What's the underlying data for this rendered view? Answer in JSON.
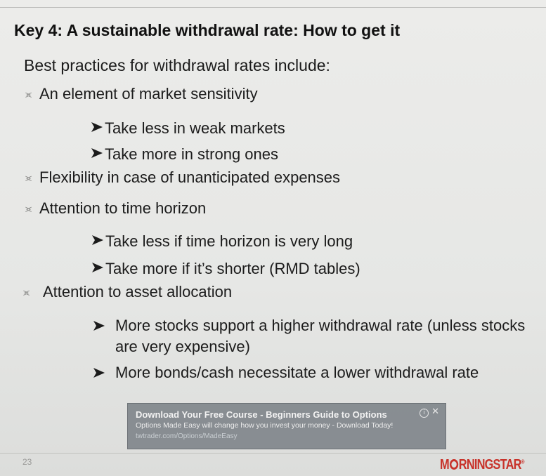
{
  "slide": {
    "title": "Key 4: A sustainable withdrawal rate: How to get it",
    "intro": "Best practices for withdrawal rates include:",
    "bullets": [
      {
        "text": "An element of market sensitivity",
        "sub": [
          "Take less in weak markets",
          "Take more in strong ones"
        ]
      },
      {
        "text": "Flexibility in case of unanticipated expenses",
        "sub": []
      },
      {
        "text": "Attention to time horizon",
        "sub": [
          "Take less if time horizon is very long",
          "Take more if it’s shorter (RMD tables)"
        ]
      },
      {
        "text": "Attention to asset allocation",
        "sub": [
          "More stocks support a higher withdrawal rate (unless stocks are very expensive)",
          "More bonds/cash necessitate a lower withdrawal rate"
        ]
      }
    ],
    "page_number": "23",
    "logo_text": "MORNINGSTAR"
  },
  "ad": {
    "title": "Download Your Free Course - Beginners Guide to Options",
    "text": "Options Made Easy will change how you invest your money - Download Today!",
    "url": "twtrader.com/Options/MadeEasy",
    "info_icon": "info-icon",
    "close_icon": "close-icon"
  },
  "colors": {
    "background": "#e9e9e6",
    "text": "#1a1a1a",
    "logo_red": "#c8332b",
    "ad_bg": "#70767c"
  }
}
